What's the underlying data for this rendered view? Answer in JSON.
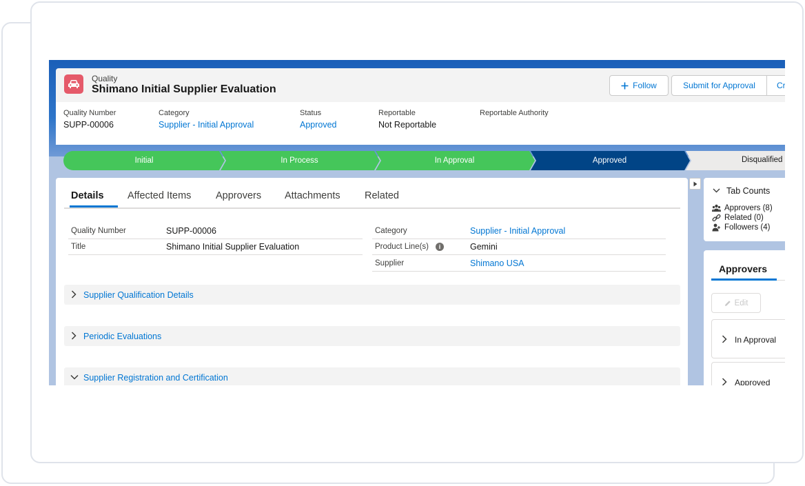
{
  "header": {
    "object_label": "Quality",
    "record_title": "Shimano Initial Supplier Evaluation",
    "buttons": {
      "follow": "Follow",
      "submit": "Submit for Approval",
      "more": "Cr"
    },
    "fields": [
      {
        "label": "Quality Number",
        "value": "SUPP-00006"
      },
      {
        "label": "Category",
        "value": "Supplier - Initial Approval"
      },
      {
        "label": "Status",
        "value": "Approved"
      },
      {
        "label": "Reportable",
        "value": "Not Reportable"
      },
      {
        "label": "Reportable Authority",
        "value": ""
      }
    ]
  },
  "path": {
    "stages": [
      "Initial",
      "In Process",
      "In Approval",
      "Approved",
      "Disqualified"
    ],
    "colors": {
      "complete": "#45c65a",
      "current": "#014486",
      "incomplete": "#ecebea"
    }
  },
  "tabs": [
    "Details",
    "Affected Items",
    "Approvers",
    "Attachments",
    "Related"
  ],
  "details": {
    "left": [
      {
        "label": "Quality Number",
        "value": "SUPP-00006"
      },
      {
        "label": "Title",
        "value": "Shimano Initial Supplier Evaluation"
      }
    ],
    "right": [
      {
        "label": "Category",
        "value": "Supplier - Initial Approval"
      },
      {
        "label": "Product Line(s)",
        "value": "Gemini"
      },
      {
        "label": "Supplier",
        "value": "Shimano USA"
      }
    ]
  },
  "sections": [
    "Supplier Qualification Details",
    "Periodic Evaluations",
    "Supplier Registration and Certification"
  ],
  "tab_counts": {
    "title": "Tab Counts",
    "items": [
      "Approvers (8)",
      "Related (0)",
      "Followers (4)"
    ]
  },
  "approvers_panel": {
    "title": "Approvers",
    "edit_label": "Edit",
    "groups": [
      "In Approval",
      "Approved"
    ]
  }
}
